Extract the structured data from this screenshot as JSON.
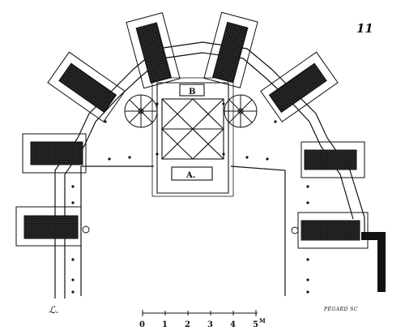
{
  "plate_number": "11",
  "room_labels": {
    "main_room": "A.",
    "small_room": "B"
  },
  "scale": {
    "ticks": [
      "0",
      "1",
      "2",
      "3",
      "4",
      "5"
    ],
    "unit": "M"
  },
  "engraver_credit": "PÉGARD SC",
  "signature_mark": "ℒ.",
  "colors": {
    "ink": "#111111",
    "fill": "#222222",
    "paper": "#ffffff"
  }
}
